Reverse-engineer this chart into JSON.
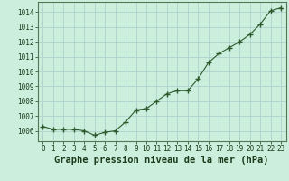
{
  "x": [
    0,
    1,
    2,
    3,
    4,
    5,
    6,
    7,
    8,
    9,
    10,
    11,
    12,
    13,
    14,
    15,
    16,
    17,
    18,
    19,
    20,
    21,
    22,
    23
  ],
  "y": [
    1006.3,
    1006.1,
    1006.1,
    1006.1,
    1006.0,
    1005.7,
    1005.9,
    1006.0,
    1006.6,
    1007.4,
    1007.5,
    1008.0,
    1008.5,
    1008.7,
    1008.7,
    1009.5,
    1010.6,
    1011.2,
    1011.6,
    1012.0,
    1012.5,
    1013.2,
    1014.1,
    1014.3
  ],
  "line_color": "#2d5a2d",
  "marker": "+",
  "marker_size": 4,
  "bg_color": "#cceedd",
  "grid_color": "#aacccc",
  "xlabel": "Graphe pression niveau de la mer (hPa)",
  "ylim_min": 1005.3,
  "ylim_max": 1014.7,
  "xlim_min": -0.5,
  "xlim_max": 23.5,
  "yticks": [
    1006,
    1007,
    1008,
    1009,
    1010,
    1011,
    1012,
    1013,
    1014
  ],
  "xticks": [
    0,
    1,
    2,
    3,
    4,
    5,
    6,
    7,
    8,
    9,
    10,
    11,
    12,
    13,
    14,
    15,
    16,
    17,
    18,
    19,
    20,
    21,
    22,
    23
  ],
  "tick_label_fontsize": 5.5,
  "xlabel_fontsize": 7.5
}
